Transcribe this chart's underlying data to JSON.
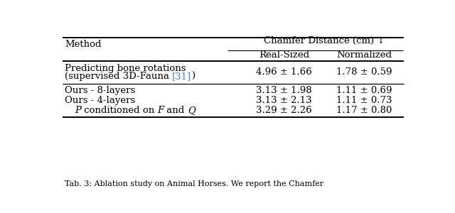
{
  "title_col1": "Method",
  "title_group": "Chamfer Distance (cm) ↓",
  "col2_header": "Real-Sized",
  "col3_header": "Normalized",
  "rows": [
    {
      "method_line1": "Predicting bone rotations",
      "method_line2_pre": "(supervised 3D-Fauna ",
      "method_line2_cite": "[31]",
      "method_line2_post": ")",
      "col2": "4.96 ± 1.66",
      "col3": "1.78 ± 0.59"
    },
    {
      "method_line1": "Ours - 8-layers",
      "col2": "3.13 ± 1.98",
      "col3": "1.11 ± 0.69"
    },
    {
      "method_line1": "Ours - 4-layers",
      "col2": "3.13 ± 2.13",
      "col3": "1.11 ± 0.73"
    },
    {
      "method_line1_parts": [
        {
          "text": "P",
          "style": "italic"
        },
        {
          "text": " conditioned on ",
          "style": "normal"
        },
        {
          "text": "F",
          "style": "italic"
        },
        {
          "text": " and ",
          "style": "normal"
        },
        {
          "text": "Q",
          "style": "italic"
        }
      ],
      "indent": 18,
      "col2": "3.29 ± 2.26",
      "col3": "1.17 ± 0.80"
    }
  ],
  "caption": "Tab. 3: Ablation study on Animal Horses. We report the Chamfer",
  "bg_color": "#ffffff",
  "text_color": "#000000",
  "cite_color": "#4a7fc1",
  "font_size": 9.5
}
